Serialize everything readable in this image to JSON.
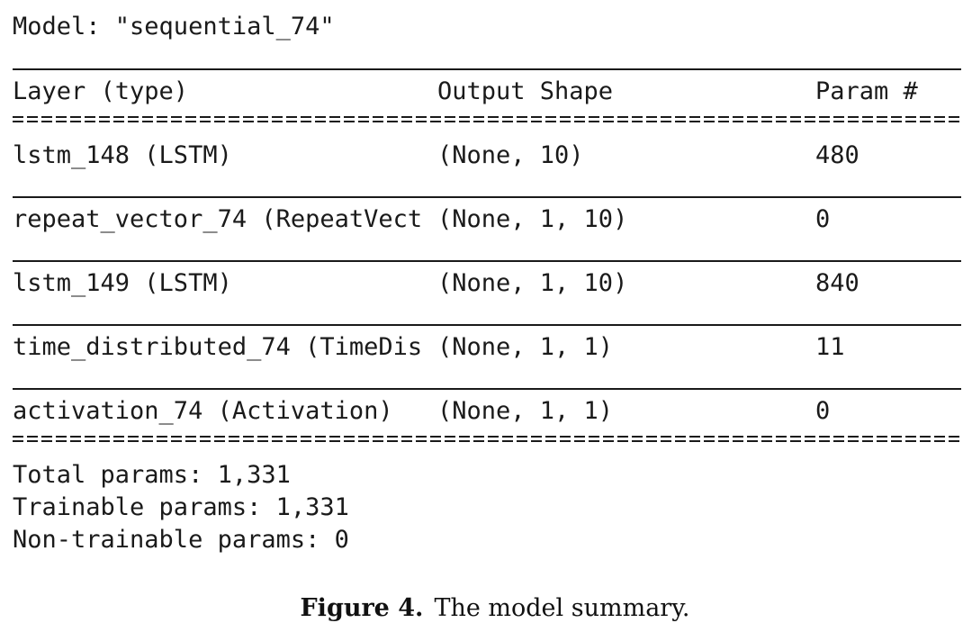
{
  "model_title": "Model: \"sequential_74\"",
  "header": {
    "layer": "Layer (type)",
    "shape": "Output Shape",
    "param": "Param #"
  },
  "rows": [
    {
      "layer": "lstm_148 (LSTM)",
      "shape": "(None, 10)",
      "param": "480"
    },
    {
      "layer": "repeat_vector_74 (RepeatVect",
      "shape": "(None, 1, 10)",
      "param": "0"
    },
    {
      "layer": "lstm_149 (LSTM)",
      "shape": "(None, 1, 10)",
      "param": "840"
    },
    {
      "layer": "time_distributed_74 (TimeDis",
      "shape": "(None, 1, 1)",
      "param": "11"
    },
    {
      "layer": "activation_74 (Activation)",
      "shape": "(None, 1, 1)",
      "param": "0"
    }
  ],
  "totals": {
    "total": "Total params: 1,331",
    "trainable": "Trainable params: 1,331",
    "non_trainable": "Non-trainable params: 0"
  },
  "caption": {
    "label": "Figure 4.",
    "text": "The model summary."
  }
}
